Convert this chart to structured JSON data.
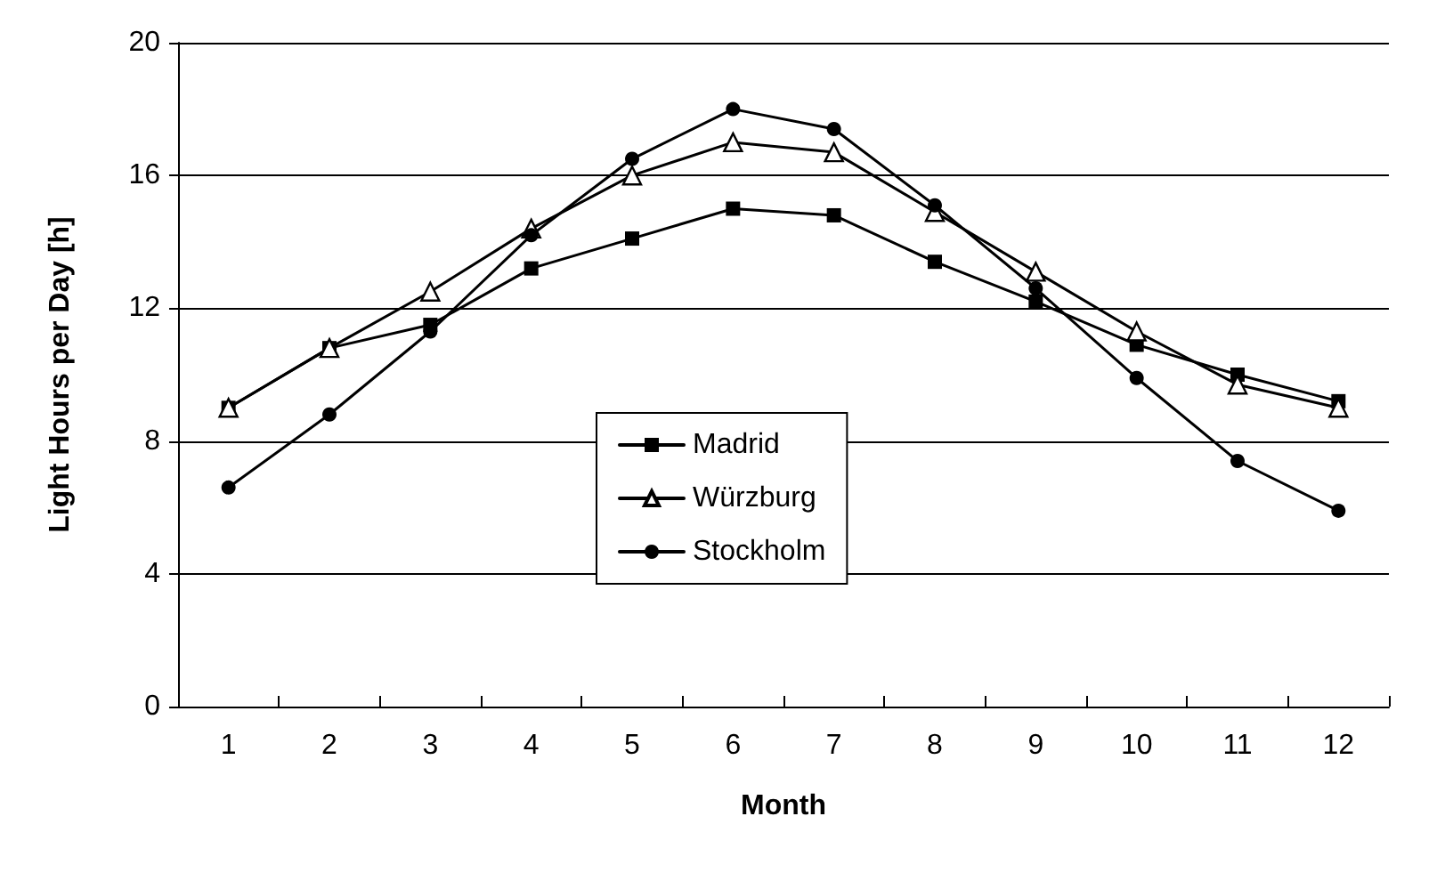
{
  "chart_data": {
    "type": "line",
    "xlabel": "Month",
    "ylabel": "Light Hours per Day [h]",
    "categories": [
      "1",
      "2",
      "3",
      "4",
      "5",
      "6",
      "7",
      "8",
      "9",
      "10",
      "11",
      "12"
    ],
    "series": [
      {
        "name": "Madrid",
        "color": "#000000",
        "marker": "square",
        "values": [
          9.0,
          10.8,
          11.5,
          13.2,
          14.1,
          15.0,
          14.8,
          13.4,
          12.2,
          10.9,
          10.0,
          9.2
        ]
      },
      {
        "name": "Würzburg",
        "color": "#000000",
        "marker": "triangle",
        "values": [
          9.0,
          10.8,
          12.5,
          14.4,
          16.0,
          17.0,
          16.7,
          14.9,
          13.1,
          11.3,
          9.7,
          9.0
        ]
      },
      {
        "name": "Stockholm",
        "color": "#000000",
        "marker": "circle",
        "values": [
          6.6,
          8.8,
          11.3,
          14.2,
          16.5,
          18.0,
          17.4,
          15.1,
          12.6,
          9.9,
          7.4,
          5.9
        ]
      }
    ],
    "ylim": [
      0,
      20
    ],
    "yticks": [
      0,
      4,
      8,
      12,
      16,
      20
    ],
    "grid": "y",
    "legend": "center",
    "line_style": "solid"
  }
}
